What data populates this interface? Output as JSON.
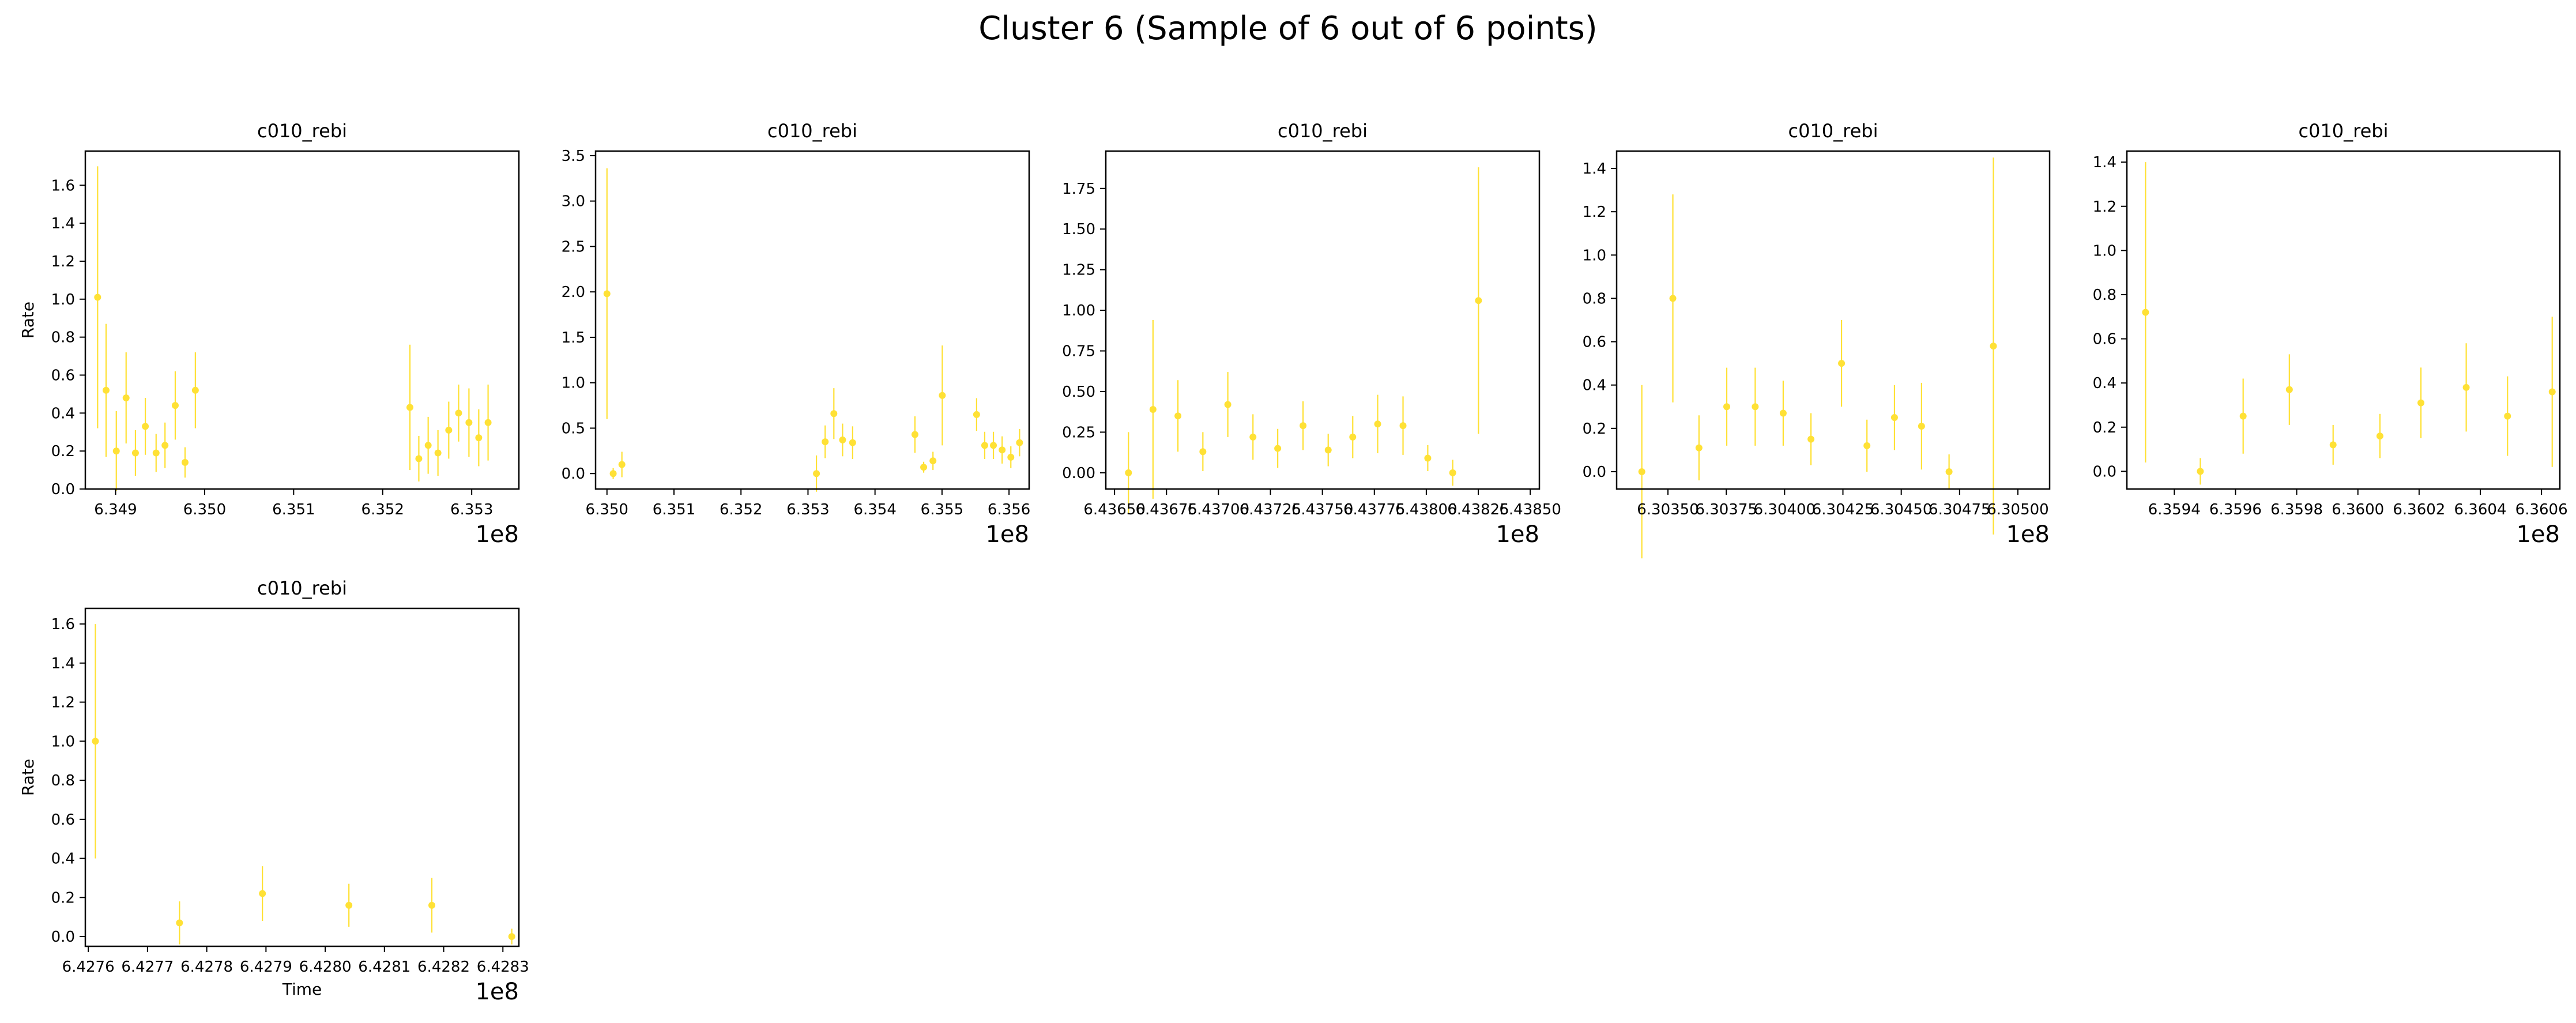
{
  "figure": {
    "title": "Cluster 6 (Sample of 6 out of 6 points)",
    "marker_color": "#FFE135"
  },
  "chart_data": [
    {
      "type": "scatter",
      "title": "c010_rebi",
      "xlabel": "",
      "ylabel": "Rate",
      "offset_label": "1e8",
      "xlim": [
        634.866,
        635.353
      ],
      "ylim": [
        0,
        1.78
      ],
      "xticks": [
        634.9,
        635.0,
        635.1,
        635.2,
        635.3
      ],
      "xtick_labels": [
        "6.349",
        "6.350",
        "6.351",
        "6.352",
        "6.353"
      ],
      "yticks": [
        0,
        0.2,
        0.4,
        0.6,
        0.8,
        1.0,
        1.2,
        1.4,
        1.6
      ],
      "ytick_labels": [
        "0.0",
        "0.2",
        "0.4",
        "0.6",
        "0.8",
        "1.0",
        "1.2",
        "1.4",
        "1.6"
      ],
      "points": [
        {
          "x": 634.8798,
          "y": 1.01,
          "err": 0.69
        },
        {
          "x": 634.8893,
          "y": 0.52,
          "err": 0.35
        },
        {
          "x": 634.9008,
          "y": 0.2,
          "err": 0.21
        },
        {
          "x": 634.9118,
          "y": 0.48,
          "err": 0.24
        },
        {
          "x": 634.9223,
          "y": 0.19,
          "err": 0.12
        },
        {
          "x": 634.9334,
          "y": 0.33,
          "err": 0.15
        },
        {
          "x": 634.9455,
          "y": 0.19,
          "err": 0.1
        },
        {
          "x": 634.9555,
          "y": 0.23,
          "err": 0.12
        },
        {
          "x": 634.967,
          "y": 0.44,
          "err": 0.18
        },
        {
          "x": 634.978,
          "y": 0.14,
          "err": 0.08
        },
        {
          "x": 634.9896,
          "y": 0.52,
          "err": 0.2
        },
        {
          "x": 635.2306,
          "y": 0.43,
          "err": 0.33
        },
        {
          "x": 635.2406,
          "y": 0.16,
          "err": 0.12
        },
        {
          "x": 635.2511,
          "y": 0.23,
          "err": 0.15
        },
        {
          "x": 635.2621,
          "y": 0.19,
          "err": 0.12
        },
        {
          "x": 635.2742,
          "y": 0.31,
          "err": 0.15
        },
        {
          "x": 635.2853,
          "y": 0.4,
          "err": 0.15
        },
        {
          "x": 635.2969,
          "y": 0.35,
          "err": 0.18
        },
        {
          "x": 635.3079,
          "y": 0.27,
          "err": 0.15
        },
        {
          "x": 635.3184,
          "y": 0.35,
          "err": 0.2
        }
      ]
    },
    {
      "type": "scatter",
      "title": "c010_rebi",
      "xlabel": "",
      "ylabel": "",
      "offset_label": "1e8",
      "xlim": [
        634.983,
        635.63
      ],
      "ylim": [
        -0.17,
        3.55
      ],
      "xticks": [
        635.0,
        635.1,
        635.2,
        635.3,
        635.4,
        635.5,
        635.6
      ],
      "xtick_labels": [
        "6.350",
        "6.351",
        "6.352",
        "6.353",
        "6.354",
        "6.355",
        "6.356"
      ],
      "yticks": [
        0,
        0.5,
        1.0,
        1.5,
        2.0,
        2.5,
        3.0,
        3.5
      ],
      "ytick_labels": [
        "0.0",
        "0.5",
        "1.0",
        "1.5",
        "2.0",
        "2.5",
        "3.0",
        "3.5"
      ],
      "points": [
        {
          "x": 635.0,
          "y": 1.98,
          "err": 1.38
        },
        {
          "x": 635.0093,
          "y": 0.0,
          "err": 0.06
        },
        {
          "x": 635.0223,
          "y": 0.1,
          "err": 0.14
        },
        {
          "x": 635.3126,
          "y": 0.0,
          "err": 0.2
        },
        {
          "x": 635.3256,
          "y": 0.35,
          "err": 0.18
        },
        {
          "x": 635.3386,
          "y": 0.66,
          "err": 0.28
        },
        {
          "x": 635.3516,
          "y": 0.37,
          "err": 0.18
        },
        {
          "x": 635.3666,
          "y": 0.34,
          "err": 0.18
        },
        {
          "x": 635.4596,
          "y": 0.43,
          "err": 0.2
        },
        {
          "x": 635.4726,
          "y": 0.07,
          "err": 0.06
        },
        {
          "x": 635.4865,
          "y": 0.14,
          "err": 0.1
        },
        {
          "x": 635.5004,
          "y": 0.86,
          "err": 0.55
        },
        {
          "x": 635.5516,
          "y": 0.65,
          "err": 0.18
        },
        {
          "x": 635.5637,
          "y": 0.31,
          "err": 0.15
        },
        {
          "x": 635.5767,
          "y": 0.31,
          "err": 0.15
        },
        {
          "x": 635.5897,
          "y": 0.26,
          "err": 0.15
        },
        {
          "x": 635.6027,
          "y": 0.18,
          "err": 0.12
        },
        {
          "x": 635.6157,
          "y": 0.34,
          "err": 0.15
        }
      ]
    },
    {
      "type": "scatter",
      "title": "c010_rebi",
      "xlabel": "",
      "ylabel": "",
      "offset_label": "1e8",
      "xlim": [
        643.6458,
        643.8544
      ],
      "ylim": [
        -0.1,
        1.98
      ],
      "xticks": [
        643.65,
        643.675,
        643.7,
        643.725,
        643.75,
        643.775,
        643.8,
        643.825,
        643.85
      ],
      "xtick_labels": [
        "6.43650",
        "6.43675",
        "6.43700",
        "6.43725",
        "6.43750",
        "6.43775",
        "6.43800",
        "6.43825",
        "6.43850"
      ],
      "yticks": [
        0,
        0.25,
        0.5,
        0.75,
        1.0,
        1.25,
        1.5,
        1.75
      ],
      "ytick_labels": [
        "0.00",
        "0.25",
        "0.50",
        "0.75",
        "1.00",
        "1.25",
        "1.50",
        "1.75"
      ],
      "points": [
        {
          "x": 643.6567,
          "y": 0.0,
          "err": 0.25
        },
        {
          "x": 643.6685,
          "y": 0.39,
          "err": 0.55
        },
        {
          "x": 643.6805,
          "y": 0.35,
          "err": 0.22
        },
        {
          "x": 643.6925,
          "y": 0.13,
          "err": 0.12
        },
        {
          "x": 643.7045,
          "y": 0.42,
          "err": 0.2
        },
        {
          "x": 643.7166,
          "y": 0.22,
          "err": 0.14
        },
        {
          "x": 643.7285,
          "y": 0.15,
          "err": 0.12
        },
        {
          "x": 643.7407,
          "y": 0.29,
          "err": 0.15
        },
        {
          "x": 643.7528,
          "y": 0.14,
          "err": 0.1
        },
        {
          "x": 643.7646,
          "y": 0.22,
          "err": 0.13
        },
        {
          "x": 643.7766,
          "y": 0.3,
          "err": 0.18
        },
        {
          "x": 643.7888,
          "y": 0.29,
          "err": 0.18
        },
        {
          "x": 643.8007,
          "y": 0.09,
          "err": 0.08
        },
        {
          "x": 643.8127,
          "y": 0.0,
          "err": 0.08
        },
        {
          "x": 643.8251,
          "y": 1.06,
          "err": 0.82
        }
      ]
    },
    {
      "type": "scatter",
      "title": "c010_rebi",
      "xlabel": "",
      "ylabel": "",
      "offset_label": "1e8",
      "xlim": [
        630.328,
        630.5136
      ],
      "ylim": [
        -0.08,
        1.48
      ],
      "xticks": [
        630.35,
        630.375,
        630.4,
        630.425,
        630.45,
        630.475,
        630.5
      ],
      "xtick_labels": [
        "6.30350",
        "6.30375",
        "6.30400",
        "6.30425",
        "6.30450",
        "6.30475",
        "6.30500"
      ],
      "yticks": [
        0,
        0.2,
        0.4,
        0.6,
        0.8,
        1.0,
        1.2,
        1.4
      ],
      "ytick_labels": [
        "0.0",
        "0.2",
        "0.4",
        "0.6",
        "0.8",
        "1.0",
        "1.2",
        "1.4"
      ],
      "points": [
        {
          "x": 630.3388,
          "y": 0.0,
          "err": 0.4
        },
        {
          "x": 630.3521,
          "y": 0.8,
          "err": 0.48
        },
        {
          "x": 630.3633,
          "y": 0.11,
          "err": 0.15
        },
        {
          "x": 630.3752,
          "y": 0.3,
          "err": 0.18
        },
        {
          "x": 630.3874,
          "y": 0.3,
          "err": 0.18
        },
        {
          "x": 630.3994,
          "y": 0.27,
          "err": 0.15
        },
        {
          "x": 630.4113,
          "y": 0.15,
          "err": 0.12
        },
        {
          "x": 630.4244,
          "y": 0.5,
          "err": 0.2
        },
        {
          "x": 630.4353,
          "y": 0.12,
          "err": 0.12
        },
        {
          "x": 630.4471,
          "y": 0.25,
          "err": 0.15
        },
        {
          "x": 630.4587,
          "y": 0.21,
          "err": 0.2
        },
        {
          "x": 630.4705,
          "y": 0.0,
          "err": 0.08
        },
        {
          "x": 630.4895,
          "y": 0.58,
          "err": 0.87
        }
      ]
    },
    {
      "type": "scatter",
      "title": "c010_rebi",
      "xlabel": "",
      "ylabel": "",
      "offset_label": "1e8",
      "xlim": [
        635.9245,
        636.066
      ],
      "ylim": [
        -0.08,
        1.45
      ],
      "xticks": [
        635.94,
        635.96,
        635.98,
        636.0,
        636.02,
        636.04,
        636.06
      ],
      "xtick_labels": [
        "6.3594",
        "6.3596",
        "6.3598",
        "6.3600",
        "6.3602",
        "6.3604",
        "6.3606"
      ],
      "yticks": [
        0,
        0.2,
        0.4,
        0.6,
        0.8,
        1.0,
        1.2,
        1.4
      ],
      "ytick_labels": [
        "0.0",
        "0.2",
        "0.4",
        "0.6",
        "0.8",
        "1.0",
        "1.2",
        "1.4"
      ],
      "points": [
        {
          "x": 635.9306,
          "y": 0.72,
          "err": 0.68
        },
        {
          "x": 635.9485,
          "y": 0.0,
          "err": 0.06
        },
        {
          "x": 635.9625,
          "y": 0.25,
          "err": 0.17
        },
        {
          "x": 635.9776,
          "y": 0.37,
          "err": 0.16
        },
        {
          "x": 635.9919,
          "y": 0.12,
          "err": 0.09
        },
        {
          "x": 636.0072,
          "y": 0.16,
          "err": 0.1
        },
        {
          "x": 636.0206,
          "y": 0.31,
          "err": 0.16
        },
        {
          "x": 636.0354,
          "y": 0.38,
          "err": 0.2
        },
        {
          "x": 636.0489,
          "y": 0.25,
          "err": 0.18
        },
        {
          "x": 636.0635,
          "y": 0.36,
          "err": 0.34
        }
      ]
    },
    {
      "type": "scatter",
      "title": "c010_rebi",
      "xlabel": "Time",
      "ylabel": "Rate",
      "offset_label": "1e8",
      "xlim": [
        642.7595,
        642.8327
      ],
      "ylim": [
        -0.05,
        1.68
      ],
      "xticks": [
        642.76,
        642.77,
        642.78,
        642.79,
        642.8,
        642.81,
        642.82,
        642.83
      ],
      "xtick_labels": [
        "6.4276",
        "6.4277",
        "6.4278",
        "6.4279",
        "6.4280",
        "6.4281",
        "6.4282",
        "6.4283"
      ],
      "yticks": [
        0,
        0.2,
        0.4,
        0.6,
        0.8,
        1.0,
        1.2,
        1.4,
        1.6
      ],
      "ytick_labels": [
        "0.0",
        "0.2",
        "0.4",
        "0.6",
        "0.8",
        "1.0",
        "1.2",
        "1.4",
        "1.6"
      ],
      "points": [
        {
          "x": 642.7612,
          "y": 1.0,
          "err": 0.6
        },
        {
          "x": 642.7754,
          "y": 0.07,
          "err": 0.11
        },
        {
          "x": 642.7894,
          "y": 0.22,
          "err": 0.14
        },
        {
          "x": 642.804,
          "y": 0.16,
          "err": 0.11
        },
        {
          "x": 642.818,
          "y": 0.16,
          "err": 0.14
        },
        {
          "x": 642.8315,
          "y": 0.0,
          "err": 0.04
        }
      ]
    }
  ]
}
